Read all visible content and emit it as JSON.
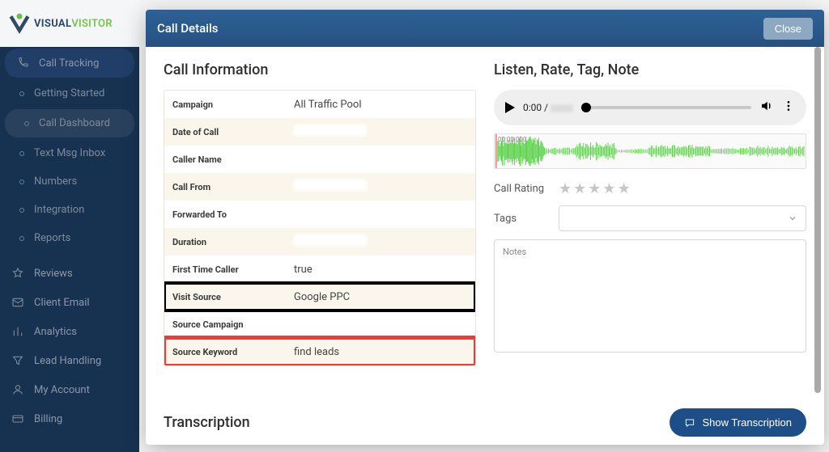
{
  "brand": {
    "name1": "VISUAL",
    "name2": "VISITOR"
  },
  "sidebar": {
    "primary": {
      "label": "Call Tracking"
    },
    "subs": [
      {
        "label": "Getting Started"
      },
      {
        "label": "Call Dashboard"
      },
      {
        "label": "Text Msg Inbox"
      },
      {
        "label": "Numbers"
      },
      {
        "label": "Integration"
      },
      {
        "label": "Reports"
      }
    ],
    "others": [
      {
        "label": "Reviews",
        "icon": "star"
      },
      {
        "label": "Client Email",
        "icon": "mail"
      },
      {
        "label": "Analytics",
        "icon": "bars"
      },
      {
        "label": "Lead Handling",
        "icon": "funnel"
      },
      {
        "label": "My Account",
        "icon": "user"
      },
      {
        "label": "Billing",
        "icon": "card"
      }
    ]
  },
  "modal": {
    "title": "Call Details",
    "close": "Close",
    "left_heading": "Call Information",
    "right_heading": "Listen, Rate, Tag, Note",
    "info": [
      {
        "label": "Campaign",
        "value": "All Traffic Pool"
      },
      {
        "label": "Date of Call",
        "value": ""
      },
      {
        "label": "Caller Name",
        "value": ""
      },
      {
        "label": "Call From",
        "value": ""
      },
      {
        "label": "Forwarded To",
        "value": ""
      },
      {
        "label": "Duration",
        "value": ""
      },
      {
        "label": "First Time Caller",
        "value": "true"
      },
      {
        "label": "Visit Source",
        "value": "Google PPC"
      },
      {
        "label": "Source Campaign",
        "value": ""
      },
      {
        "label": "Source Keyword",
        "value": "find leads"
      }
    ],
    "highlight_black_index": 7,
    "highlight_red_index": 9,
    "audio": {
      "current": "0:00",
      "separator": "/"
    },
    "waveform_timestamp": "00:00.000",
    "rating_label": "Call Rating",
    "tags_label": "Tags",
    "notes_placeholder": "Notes",
    "transcription_heading": "Transcription",
    "show_transcription": "Show Transcription"
  },
  "colors": {
    "sidebar_bg": "#1d3e63",
    "modal_header": "#2a5a8b",
    "trans_btn": "#1d4e87",
    "wave": "#55d143",
    "row_alt": "#faf6eb"
  }
}
